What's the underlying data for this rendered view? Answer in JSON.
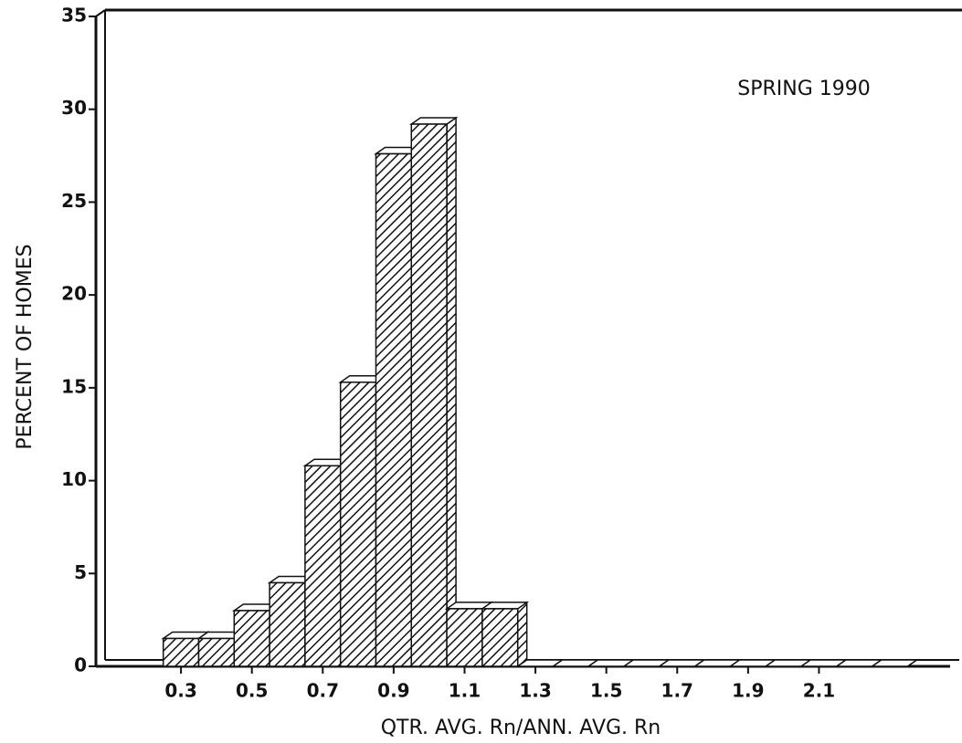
{
  "chart_data": {
    "type": "histogram",
    "annotation": "SPRING 1990",
    "x_label": "QTR. AVG. Rn/ANN. AVG. Rn",
    "y_label": "PERCENT OF HOMES",
    "bins": [
      0.25,
      0.35,
      0.45,
      0.55,
      0.65,
      0.75,
      0.85,
      0.95,
      1.05,
      1.15,
      1.25,
      1.35,
      1.45,
      1.55,
      1.65,
      1.75,
      1.85,
      1.95,
      2.05,
      2.15,
      2.25,
      2.35
    ],
    "values": [
      1.5,
      1.5,
      3,
      4.5,
      10.8,
      15.3,
      27.6,
      29.2,
      3.1,
      3.1,
      0,
      0,
      0,
      0,
      0,
      0,
      0,
      0,
      0,
      0,
      0
    ],
    "color": "#ffffff",
    "xlim": [
      0.06,
      2.47
    ],
    "xticks": [
      0.3,
      0.5,
      0.7,
      0.9,
      1.1,
      1.3,
      1.5,
      1.7,
      1.9,
      2.1
    ],
    "ylim": [
      0,
      35
    ],
    "yticks": [
      0,
      5,
      10,
      15,
      20,
      25,
      30,
      35
    ]
  }
}
